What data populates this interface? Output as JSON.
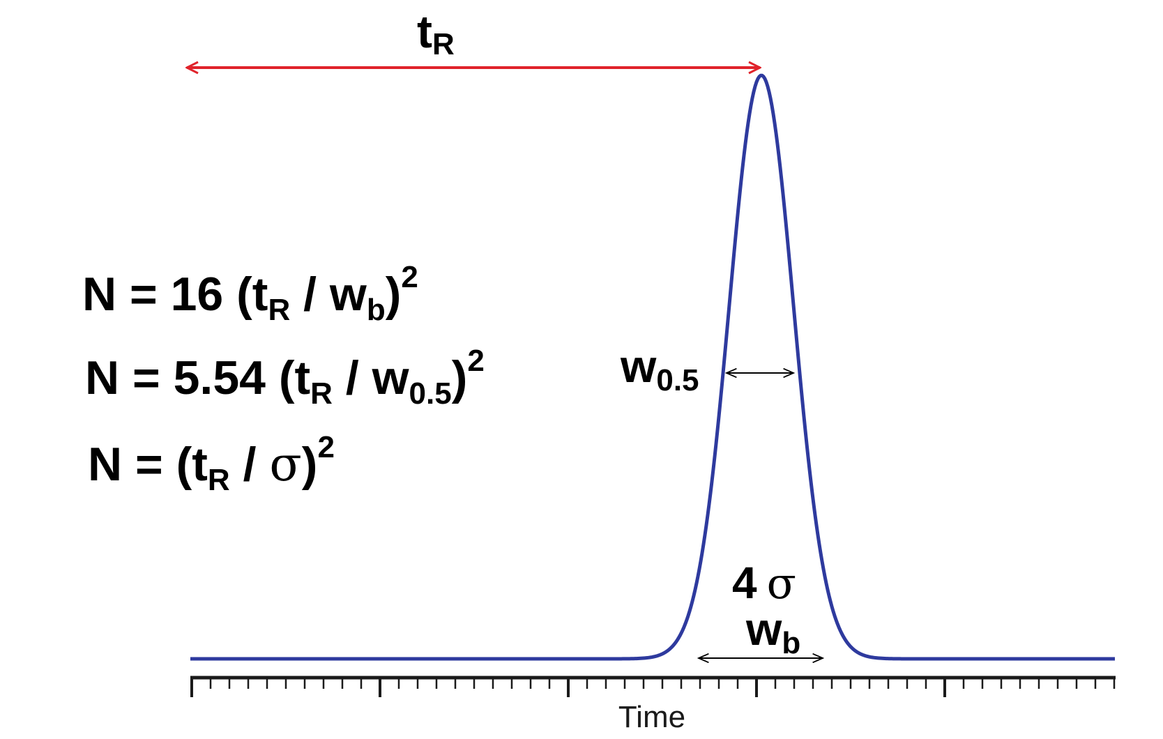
{
  "labels": {
    "retention_time": {
      "main": "t",
      "sub": "R"
    },
    "half_width": {
      "main": "w",
      "sub": "0.5"
    },
    "base_width": {
      "main": "w",
      "sub": "b"
    },
    "four_sigma": {
      "num": "4",
      "sym": "σ"
    },
    "time_axis": "Time"
  },
  "equations": [
    {
      "lhs": "N = 16 (",
      "t": "t",
      "t_sub": "R",
      "sep": " / ",
      "w": "w",
      "w_sub": "b",
      "close": ")",
      "exp": "2"
    },
    {
      "lhs": "N = 5.54 (",
      "t": "t",
      "t_sub": "R",
      "sep": " / ",
      "w": "w",
      "w_sub": "0.5",
      "close": ")",
      "exp": "2"
    },
    {
      "lhs": "N = (",
      "t": "t",
      "t_sub": "R",
      "sep": " / ",
      "sym": "σ",
      "close": ")",
      "exp": "2"
    }
  ],
  "colors": {
    "peak": "#2e3a9e",
    "retention_arrow": "#e0232b",
    "axis": "#1a1a1a",
    "text": "#000000"
  }
}
